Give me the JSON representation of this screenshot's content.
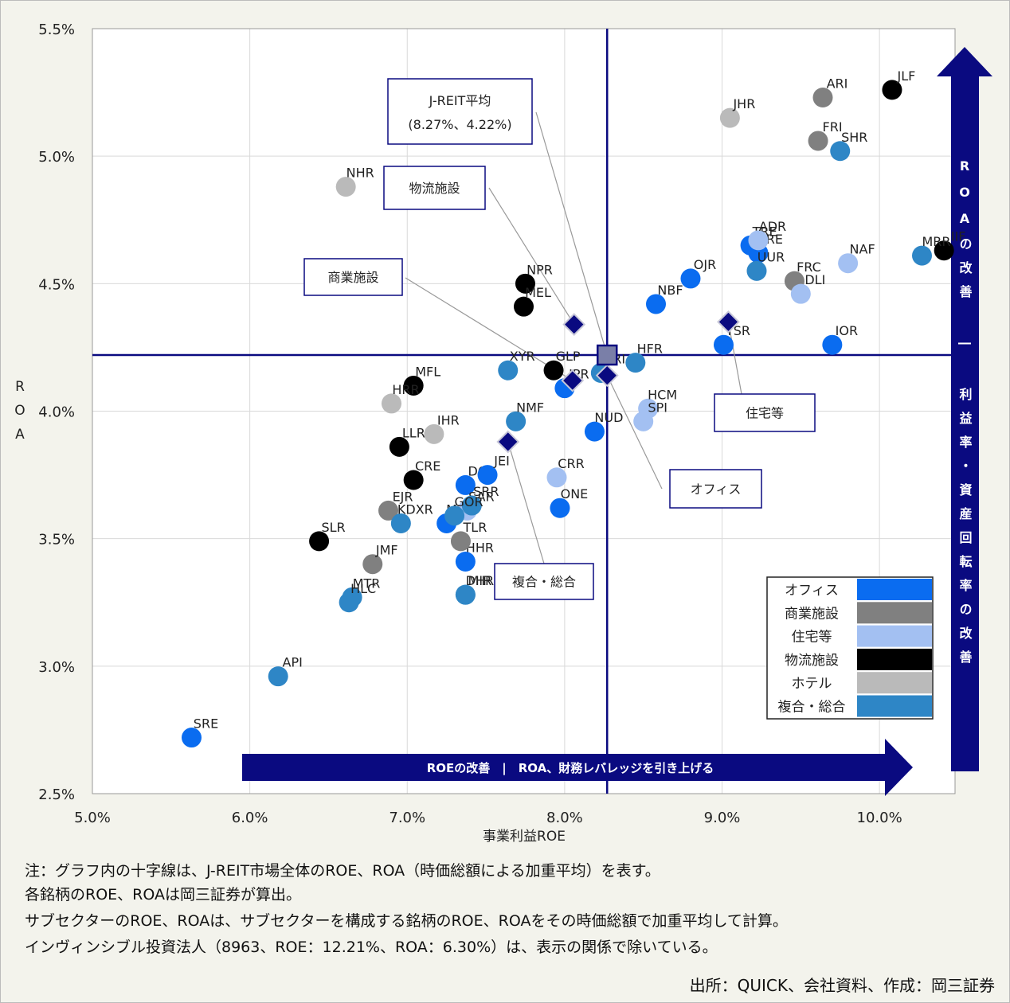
{
  "chart_data": {
    "type": "scatter",
    "xlabel": "事業利益ROE",
    "ylabel": "ROA",
    "xlim": [
      5.0,
      10.48
    ],
    "ylim": [
      2.5,
      5.5
    ],
    "xticks": [
      {
        "value": 5,
        "label": "5.0%"
      },
      {
        "value": 6,
        "label": "6.0%"
      },
      {
        "value": 7,
        "label": "7.0%"
      },
      {
        "value": 8,
        "label": "8.0%"
      },
      {
        "value": 9,
        "label": "9.0%"
      },
      {
        "value": 10,
        "label": "10.0%"
      }
    ],
    "yticks": [
      {
        "value": 2.5,
        "label": "2.5%"
      },
      {
        "value": 3,
        "label": "3.0%"
      },
      {
        "value": 3.5,
        "label": "3.5%"
      },
      {
        "value": 4,
        "label": "4.0%"
      },
      {
        "value": 4.5,
        "label": "4.5%"
      },
      {
        "value": 5,
        "label": "5.0%"
      },
      {
        "value": 5.5,
        "label": "5.5%"
      }
    ],
    "grid": true,
    "series": [
      {
        "name": "オフィス",
        "color": "#0a6cf0",
        "labels": [
          "TRE",
          "JRE",
          "OJR",
          "NBF",
          "TSR",
          "IOR",
          "JPR",
          "NUD",
          "DOI",
          "JEI",
          "ONE",
          "MHR",
          "HHR",
          "SRE"
        ],
        "x": [
          9.18,
          9.23,
          8.8,
          8.58,
          9.01,
          9.7,
          8.0,
          8.19,
          7.37,
          7.51,
          7.97,
          7.25,
          7.37,
          5.63
        ],
        "values": [
          4.65,
          4.62,
          4.52,
          4.42,
          4.26,
          4.26,
          4.09,
          3.92,
          3.71,
          3.75,
          3.62,
          3.56,
          3.41,
          2.72
        ]
      },
      {
        "name": "商業施設",
        "color": "#808080",
        "labels": [
          "ARI",
          "FRI",
          "FRC",
          "EJR",
          "JMF",
          "TLR"
        ],
        "x": [
          9.64,
          9.61,
          9.46,
          6.88,
          6.78,
          7.34
        ],
        "values": [
          5.23,
          5.06,
          4.51,
          3.61,
          3.4,
          3.49
        ]
      },
      {
        "name": "住宅等",
        "color": "#a3c0f2",
        "labels": [
          "ADR",
          "NAF",
          "DLI",
          "HCM",
          "SPI",
          "CRR",
          "SAR"
        ],
        "x": [
          9.23,
          9.8,
          9.5,
          8.53,
          8.5,
          7.95,
          7.38
        ],
        "values": [
          4.67,
          4.58,
          4.46,
          4.01,
          3.96,
          3.74,
          3.61
        ]
      },
      {
        "name": "物流施設",
        "color": "#000000",
        "labels": [
          "JLF",
          "IIF",
          "NPR",
          "MEL",
          "GLP",
          "MFL",
          "LLR",
          "CRE",
          "SLR"
        ],
        "x": [
          10.08,
          10.41,
          7.75,
          7.74,
          7.93,
          7.04,
          6.95,
          7.04,
          6.44
        ],
        "values": [
          5.26,
          4.63,
          4.5,
          4.41,
          4.16,
          4.1,
          3.86,
          3.73,
          3.49
        ]
      },
      {
        "name": "ホテル",
        "color": "#bababa",
        "labels": [
          "JHR",
          "NHR",
          "HRR",
          "IHR"
        ],
        "x": [
          9.05,
          6.61,
          6.9,
          7.17
        ],
        "values": [
          5.15,
          4.88,
          4.03,
          3.91
        ]
      },
      {
        "name": "複合・総合",
        "color": "#2e86c6",
        "labels": [
          "SHR",
          "UUR",
          "MRR",
          "HFR",
          "XYR",
          "TRI",
          "NMF",
          "KDXR",
          "SRR",
          "GOR",
          "MIR",
          "DHR",
          "MTR",
          "HLC",
          "API"
        ],
        "x": [
          9.75,
          9.22,
          10.27,
          8.45,
          7.64,
          8.23,
          7.69,
          6.96,
          7.41,
          7.3,
          7.37,
          7.37,
          6.65,
          6.63,
          6.18
        ],
        "values": [
          5.02,
          4.55,
          4.61,
          4.19,
          4.16,
          4.15,
          3.96,
          3.56,
          3.63,
          3.59,
          3.28,
          3.28,
          3.27,
          3.25,
          2.96
        ]
      }
    ],
    "subsectors": {
      "color": "#0a0a80",
      "names": [
        "オフィス",
        "住宅等",
        "物流施設",
        "商業施設",
        "複合・総合"
      ],
      "x": [
        8.27,
        9.04,
        8.06,
        8.05,
        7.64
      ],
      "values": [
        4.14,
        4.35,
        4.34,
        4.12,
        3.88
      ]
    },
    "average": {
      "x": 8.27,
      "y": 4.22,
      "label": [
        "J-REIT平均",
        "(8.27%、4.22%)"
      ]
    },
    "x_arrow_label": "ROEの改善　|　ROA、財務レバレッジを引き上げる",
    "y_arrow_label": "ROAの改善 ― 利益率・資産回転率の改善",
    "notes": [
      "注：グラフ内の十字線は、J-REIT市場全体のROE、ROA（時価総額による加重平均）を表す。",
      "各銘柄のROE、ROAは岡三証券が算出。",
      "サブセクターのROE、ROAは、サブセクターを構成する銘柄のROE、ROAをその時価総額で加重平均して計算。",
      "インヴィンシブル投資法人（8963、ROE：12.21%、ROA：6.30%）は、表示の関係で除いている。"
    ],
    "source": "出所：QUICK、会社資料、作成：岡三証券"
  }
}
